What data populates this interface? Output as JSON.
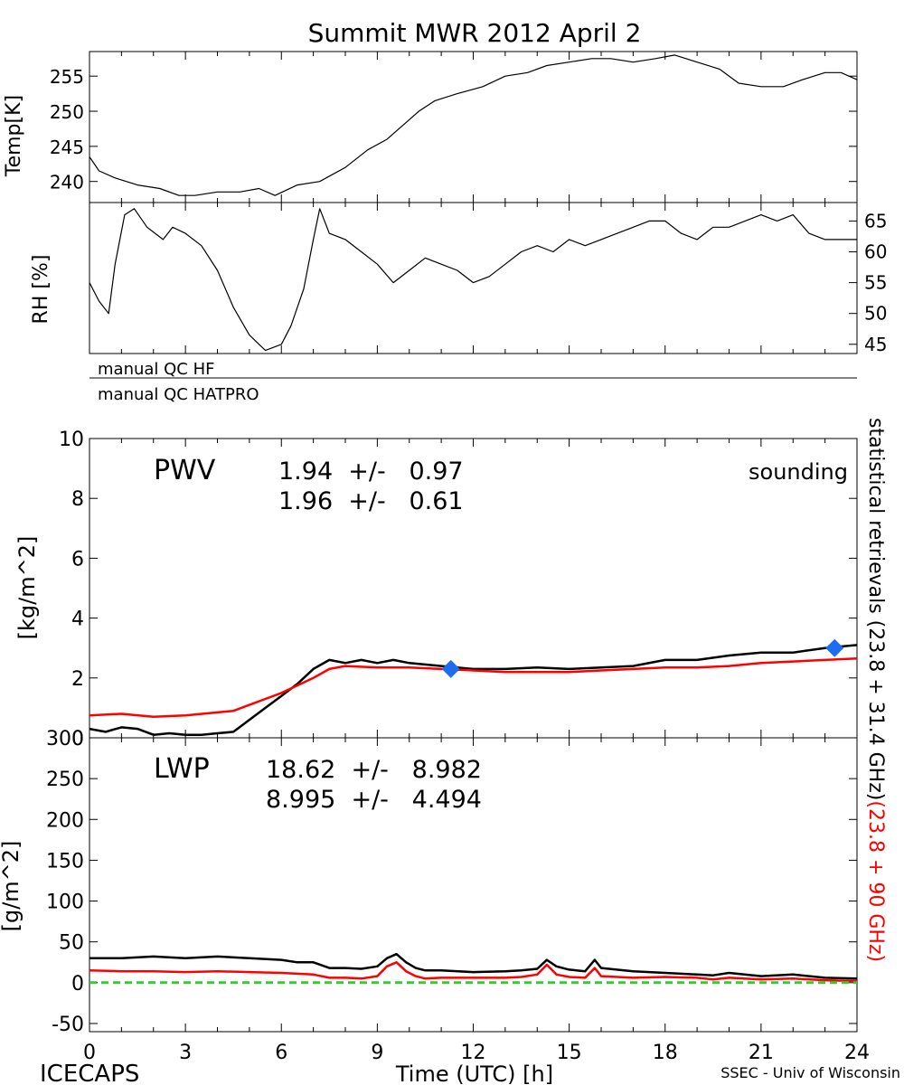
{
  "title": "Summit MWR 2012 April  2",
  "footer": {
    "left": "ICECAPS",
    "center": "Time (UTC) [h]",
    "right": "SSEC - Univ of Wisconsin"
  },
  "colors": {
    "black": "#000000",
    "red": "#ff0000",
    "blue": "#1e6cf0",
    "green": "#33cc33"
  },
  "side_labels": {
    "black_part": "statistical retrievals (23.8 + 31.4 GHz)",
    "red_part": "(23.8 + 90 GHz)"
  },
  "qc_labels": [
    "manual QC HF",
    "manual QC HATPRO"
  ],
  "chart_data": [
    {
      "id": "temp",
      "type": "line",
      "ylabel": "Temp[K]",
      "xlim": [
        0,
        24
      ],
      "ylim": [
        237,
        258.5
      ],
      "yticks": [
        240,
        245,
        250,
        255
      ],
      "series": [
        {
          "color": "black",
          "x": [
            0,
            0.3,
            0.8,
            1.5,
            2.2,
            2.8,
            3.3,
            4,
            4.7,
            5.3,
            5.8,
            6.5,
            7.2,
            8,
            8.7,
            9.3,
            9.8,
            10.3,
            10.8,
            11.5,
            12.3,
            13,
            13.7,
            14.3,
            15,
            15.7,
            16.3,
            17,
            17.7,
            18.3,
            19,
            19.7,
            20.3,
            21,
            21.7,
            22.3,
            23,
            23.5,
            24
          ],
          "y": [
            243.5,
            241.5,
            240.5,
            239.5,
            239,
            238,
            238,
            238.5,
            238.5,
            239,
            238,
            239.5,
            240,
            242,
            244.5,
            246,
            248,
            250,
            251.5,
            252.5,
            253.5,
            255,
            255.5,
            256.5,
            257,
            257.5,
            257.5,
            257,
            257.5,
            258,
            257,
            256,
            254,
            253.5,
            253.5,
            254.5,
            255.5,
            255.5,
            254.5
          ]
        }
      ]
    },
    {
      "id": "rh",
      "type": "line",
      "ylabel": "RH [%]",
      "xlim": [
        0,
        24
      ],
      "ylim": [
        43.5,
        68
      ],
      "yticks": [
        45,
        50,
        55,
        60,
        65
      ],
      "series": [
        {
          "color": "black",
          "x": [
            0,
            0.3,
            0.6,
            0.8,
            1.1,
            1.4,
            1.8,
            2.3,
            2.6,
            3,
            3.5,
            4,
            4.5,
            5,
            5.5,
            6,
            6.3,
            6.7,
            7,
            7.2,
            7.5,
            8,
            8.5,
            9,
            9.5,
            10,
            10.5,
            11,
            11.5,
            12,
            12.5,
            13,
            13.5,
            14,
            14.5,
            15,
            15.5,
            16,
            16.5,
            17,
            17.5,
            18,
            18.5,
            19,
            19.5,
            20,
            20.5,
            21,
            21.5,
            22,
            22.5,
            23,
            23.5,
            24
          ],
          "y": [
            55,
            52,
            50,
            58,
            66,
            67,
            64,
            62,
            64,
            63,
            61,
            57,
            51,
            46.5,
            44,
            45,
            48,
            54,
            62,
            67,
            63,
            62,
            60,
            58,
            55,
            57,
            59,
            58,
            57,
            55,
            56,
            58,
            60,
            61,
            60,
            62,
            61,
            62,
            63,
            64,
            65,
            65,
            63,
            62,
            64,
            64,
            65,
            66,
            65,
            66,
            63,
            62,
            62,
            62
          ]
        }
      ]
    },
    {
      "id": "pwv",
      "type": "line",
      "ylabel": "[kg/m^2]",
      "label": "PWV",
      "stats": [
        {
          "text": "1.94  +/-   0.97",
          "color": "black"
        },
        {
          "text": "1.96  +/-   0.61",
          "color": "red"
        }
      ],
      "legend": {
        "text": "sounding",
        "color": "blue"
      },
      "xlim": [
        0,
        24
      ],
      "ylim": [
        0,
        10
      ],
      "yticks": [
        0,
        2,
        4,
        6,
        8,
        10
      ],
      "series": [
        {
          "color": "black",
          "x": [
            0,
            0.5,
            1,
            1.5,
            2,
            2.5,
            3,
            3.5,
            4,
            4.5,
            5,
            5.5,
            6,
            6.5,
            7,
            7.5,
            8,
            8.5,
            9,
            9.5,
            10,
            11,
            12,
            13,
            14,
            15,
            16,
            17,
            18,
            19,
            20,
            21,
            22,
            23,
            23.5,
            24
          ],
          "y": [
            0.3,
            0.2,
            0.35,
            0.3,
            0.1,
            0.15,
            0.1,
            0.1,
            0.15,
            0.2,
            0.6,
            1.0,
            1.4,
            1.8,
            2.3,
            2.6,
            2.5,
            2.6,
            2.5,
            2.6,
            2.5,
            2.4,
            2.3,
            2.3,
            2.35,
            2.3,
            2.35,
            2.4,
            2.6,
            2.6,
            2.75,
            2.85,
            2.85,
            3.0,
            3.05,
            3.1
          ]
        },
        {
          "color": "red",
          "x": [
            0,
            1,
            2,
            3,
            4,
            4.5,
            5,
            5.5,
            6,
            6.5,
            7,
            7.5,
            8,
            9,
            10,
            11,
            12,
            13,
            14,
            15,
            16,
            17,
            18,
            19,
            20,
            21,
            22,
            23,
            24
          ],
          "y": [
            0.75,
            0.8,
            0.7,
            0.75,
            0.85,
            0.9,
            1.1,
            1.3,
            1.5,
            1.75,
            2.0,
            2.3,
            2.4,
            2.35,
            2.35,
            2.3,
            2.25,
            2.2,
            2.2,
            2.2,
            2.25,
            2.3,
            2.35,
            2.35,
            2.4,
            2.5,
            2.55,
            2.6,
            2.65
          ]
        }
      ],
      "markers": {
        "color": "blue",
        "x": [
          11.3,
          23.3
        ],
        "y": [
          2.3,
          3.0
        ]
      }
    },
    {
      "id": "lwp",
      "type": "line",
      "ylabel": "[g/m^2]",
      "label": "LWP",
      "stats": [
        {
          "text": "18.62  +/-   8.982",
          "color": "black"
        },
        {
          "text": "8.995  +/-   4.494",
          "color": "red"
        }
      ],
      "xlabel": "Time (UTC) [h]",
      "xlim": [
        0,
        24
      ],
      "ylim": [
        -60,
        300
      ],
      "yticks": [
        -50,
        0,
        50,
        100,
        150,
        200,
        250,
        300
      ],
      "xticks": [
        0,
        3,
        6,
        9,
        12,
        15,
        18,
        21,
        24
      ],
      "series": [
        {
          "color": "black",
          "x": [
            0,
            1,
            2,
            3,
            4,
            5,
            6,
            6.5,
            7,
            7.5,
            8,
            8.5,
            9,
            9.3,
            9.6,
            9.9,
            10.2,
            10.5,
            11,
            12,
            13,
            13.5,
            14,
            14.3,
            14.6,
            15,
            15.5,
            15.8,
            16,
            17,
            18,
            19,
            19.5,
            20,
            21,
            22,
            23,
            24
          ],
          "y": [
            30,
            30,
            32,
            30,
            32,
            30,
            28,
            25,
            25,
            18,
            18,
            17,
            20,
            30,
            35,
            25,
            18,
            15,
            15,
            13,
            14,
            15,
            17,
            28,
            20,
            16,
            14,
            28,
            18,
            14,
            12,
            10,
            9,
            12,
            8,
            10,
            6,
            5
          ]
        },
        {
          "color": "red",
          "x": [
            0,
            1,
            2,
            3,
            4,
            5,
            6,
            6.5,
            7,
            7.5,
            8,
            8.5,
            9,
            9.3,
            9.6,
            9.9,
            10.2,
            10.5,
            11,
            12,
            13,
            13.5,
            14,
            14.3,
            14.6,
            15,
            15.5,
            15.8,
            16,
            17,
            18,
            19,
            19.5,
            20,
            21,
            22,
            23,
            24
          ],
          "y": [
            15,
            14,
            14,
            13,
            14,
            13,
            12,
            11,
            10,
            6,
            6,
            5,
            8,
            20,
            25,
            14,
            8,
            5,
            6,
            6,
            6,
            7,
            10,
            22,
            10,
            7,
            6,
            18,
            8,
            6,
            7,
            6,
            4,
            6,
            4,
            5,
            3,
            2
          ]
        },
        {
          "color": "green",
          "dashed": true,
          "x": [
            0,
            24
          ],
          "y": [
            0,
            0
          ]
        }
      ]
    }
  ]
}
